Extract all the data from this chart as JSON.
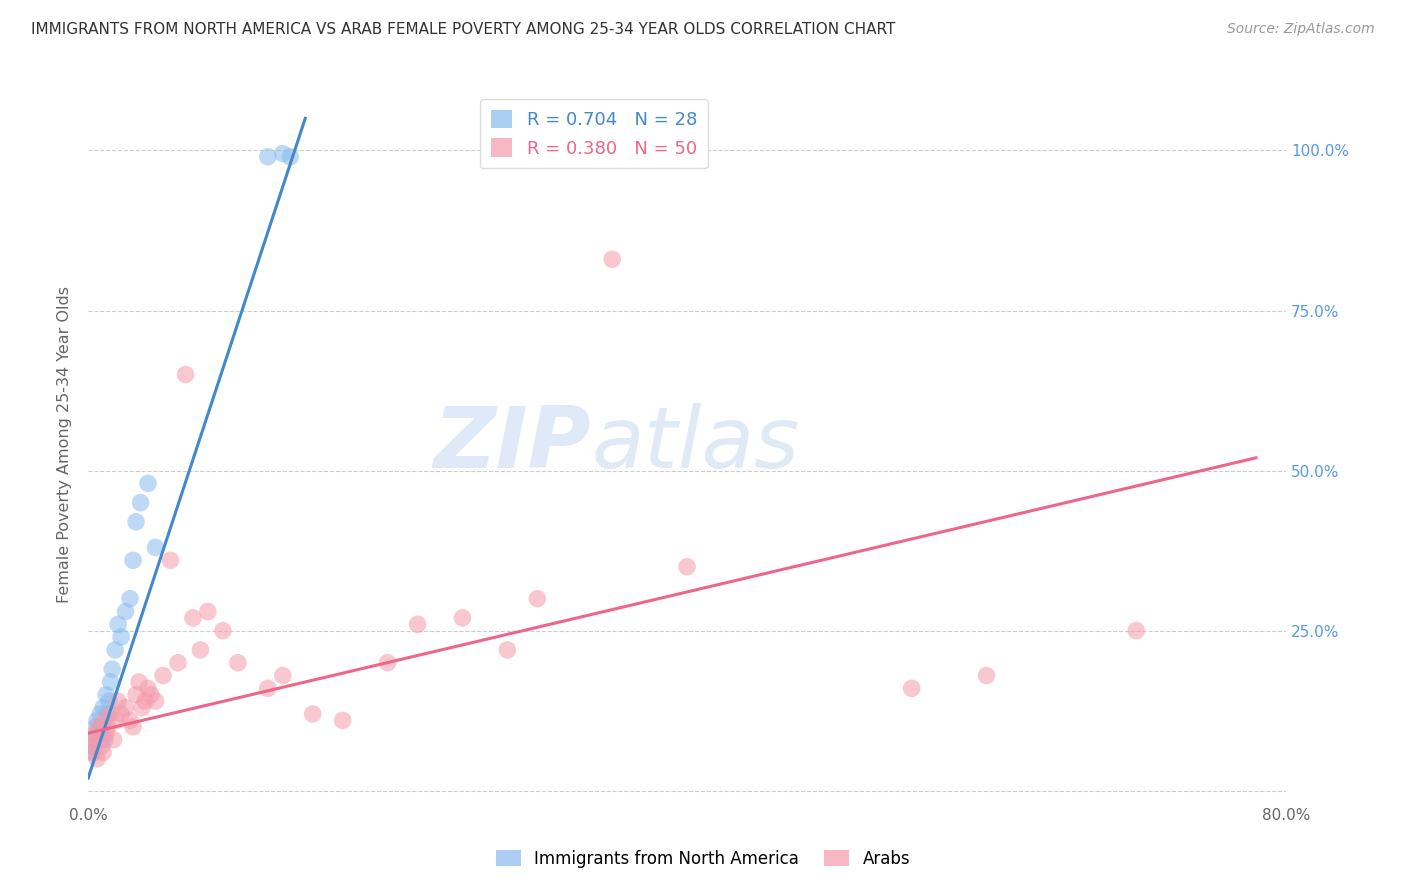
{
  "title": "IMMIGRANTS FROM NORTH AMERICA VS ARAB FEMALE POVERTY AMONG 25-34 YEAR OLDS CORRELATION CHART",
  "source": "Source: ZipAtlas.com",
  "ylabel": "Female Poverty Among 25-34 Year Olds",
  "watermark_zip": "ZIP",
  "watermark_atlas": "atlas",
  "legend_blue_R": "R = 0.704",
  "legend_blue_N": "N = 28",
  "legend_pink_R": "R = 0.380",
  "legend_pink_N": "N = 50",
  "legend_blue_label": "Immigrants from North America",
  "legend_pink_label": "Arabs",
  "blue_color": "#88bbee",
  "pink_color": "#f599aa",
  "line_blue_color": "#4488cc",
  "line_pink_color": "#ee6688",
  "xlim": [
    0.0,
    0.8
  ],
  "ylim": [
    -0.02,
    1.1
  ],
  "blue_line_x0": 0.0,
  "blue_line_y0": 0.02,
  "blue_line_x1": 0.145,
  "blue_line_y1": 1.05,
  "pink_line_x0": 0.0,
  "pink_line_y0": 0.09,
  "pink_line_x1": 0.78,
  "pink_line_y1": 0.52,
  "blue_x": [
    0.002,
    0.003,
    0.004,
    0.005,
    0.006,
    0.007,
    0.008,
    0.009,
    0.01,
    0.011,
    0.012,
    0.013,
    0.014,
    0.015,
    0.016,
    0.018,
    0.02,
    0.022,
    0.025,
    0.028,
    0.03,
    0.032,
    0.035,
    0.04,
    0.045,
    0.12,
    0.13,
    0.135
  ],
  "blue_y": [
    0.06,
    0.07,
    0.08,
    0.1,
    0.11,
    0.09,
    0.12,
    0.1,
    0.13,
    0.08,
    0.15,
    0.12,
    0.14,
    0.17,
    0.19,
    0.22,
    0.26,
    0.24,
    0.28,
    0.3,
    0.36,
    0.42,
    0.45,
    0.48,
    0.38,
    0.99,
    0.995,
    0.99
  ],
  "pink_x": [
    0.002,
    0.003,
    0.004,
    0.005,
    0.006,
    0.007,
    0.008,
    0.009,
    0.01,
    0.011,
    0.012,
    0.013,
    0.015,
    0.017,
    0.019,
    0.02,
    0.022,
    0.025,
    0.028,
    0.03,
    0.032,
    0.034,
    0.036,
    0.038,
    0.04,
    0.042,
    0.045,
    0.05,
    0.055,
    0.06,
    0.065,
    0.07,
    0.075,
    0.08,
    0.09,
    0.1,
    0.12,
    0.13,
    0.15,
    0.17,
    0.2,
    0.22,
    0.25,
    0.28,
    0.3,
    0.35,
    0.4,
    0.55,
    0.6,
    0.7
  ],
  "pink_y": [
    0.07,
    0.08,
    0.06,
    0.09,
    0.05,
    0.1,
    0.08,
    0.07,
    0.06,
    0.11,
    0.09,
    0.1,
    0.12,
    0.08,
    0.11,
    0.14,
    0.12,
    0.13,
    0.11,
    0.1,
    0.15,
    0.17,
    0.13,
    0.14,
    0.16,
    0.15,
    0.14,
    0.18,
    0.36,
    0.2,
    0.65,
    0.27,
    0.22,
    0.28,
    0.25,
    0.2,
    0.16,
    0.18,
    0.12,
    0.11,
    0.2,
    0.26,
    0.27,
    0.22,
    0.3,
    0.83,
    0.35,
    0.16,
    0.18,
    0.25
  ]
}
